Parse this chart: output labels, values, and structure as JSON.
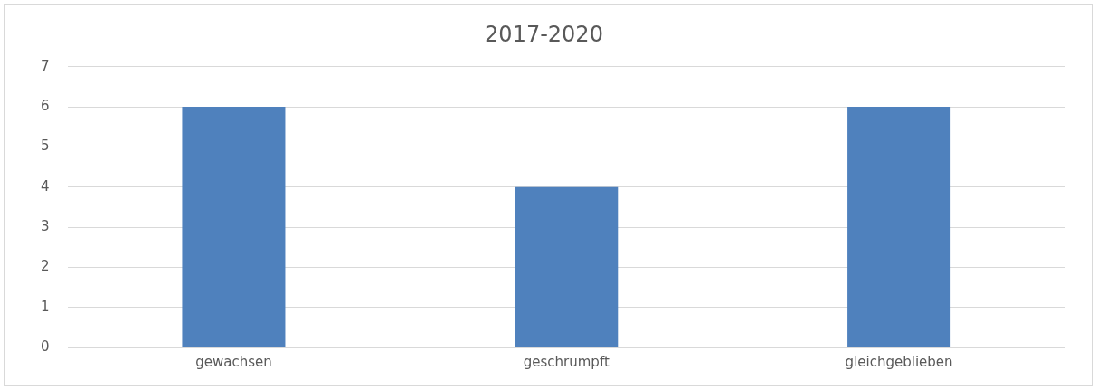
{
  "chart_data": {
    "type": "bar",
    "title": "2017-2020",
    "categories": [
      "gewachsen",
      "geschrumpft",
      "gleichgeblieben"
    ],
    "values": [
      6,
      4,
      6
    ],
    "color": "#4f81bd",
    "ylim": [
      0,
      7
    ],
    "yticks": [
      0,
      1,
      2,
      3,
      4,
      5,
      6,
      7
    ],
    "grid": "y"
  }
}
